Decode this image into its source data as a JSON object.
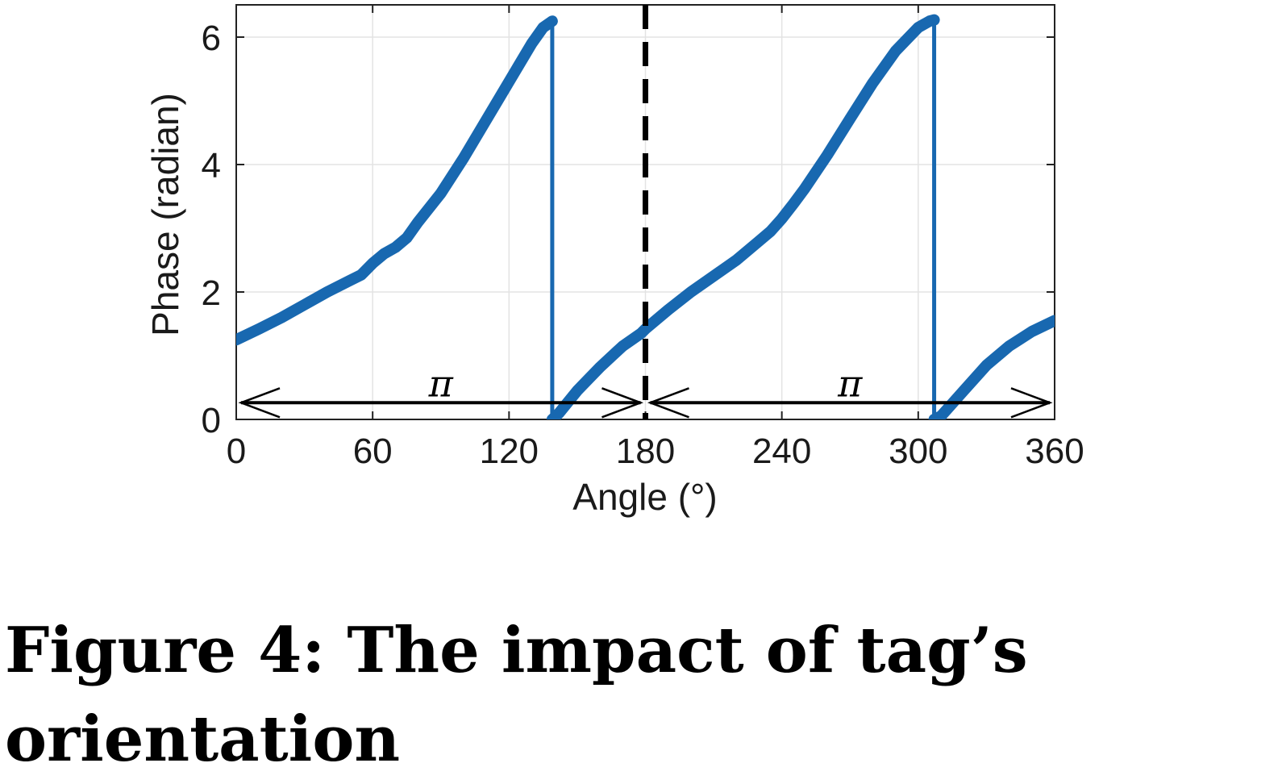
{
  "chart_data": {
    "type": "line",
    "xlabel": "Angle (°)",
    "ylabel": "Phase (radian)",
    "xlim": [
      0,
      360
    ],
    "ylim": [
      0,
      6.5
    ],
    "xticks": [
      0,
      60,
      120,
      180,
      240,
      300,
      360
    ],
    "yticks": [
      0,
      2,
      4,
      6
    ],
    "grid": true,
    "series": [
      {
        "color": "#1868b0",
        "x": [
          0,
          10,
          20,
          30,
          40,
          50,
          55,
          60,
          65,
          70,
          75,
          80,
          90,
          100,
          110,
          120,
          130,
          135,
          139,
          139,
          142,
          150,
          160,
          170,
          178,
          180,
          190,
          200,
          210,
          220,
          230,
          235,
          240,
          245,
          250,
          260,
          270,
          280,
          290,
          300,
          305,
          307,
          307,
          310,
          320,
          330,
          340,
          350,
          360
        ],
        "y": [
          1.25,
          1.42,
          1.6,
          1.8,
          2.0,
          2.18,
          2.27,
          2.45,
          2.6,
          2.7,
          2.85,
          3.1,
          3.55,
          4.1,
          4.7,
          5.3,
          5.9,
          6.15,
          6.25,
          0.0,
          0.1,
          0.45,
          0.82,
          1.15,
          1.35,
          1.42,
          1.72,
          2.0,
          2.25,
          2.5,
          2.8,
          2.95,
          3.15,
          3.38,
          3.62,
          4.15,
          4.72,
          5.28,
          5.78,
          6.15,
          6.25,
          6.27,
          0.0,
          0.05,
          0.45,
          0.85,
          1.15,
          1.38,
          1.55
        ]
      }
    ],
    "annotations": {
      "divider_x": 180,
      "arrows": [
        {
          "x_start": 0,
          "x_end": 180,
          "y": 0.3,
          "label": "π"
        },
        {
          "x_start": 180,
          "x_end": 360,
          "y": 0.3,
          "label": "π"
        }
      ]
    }
  },
  "caption": "Figure 4: The impact of tag’s orientation"
}
